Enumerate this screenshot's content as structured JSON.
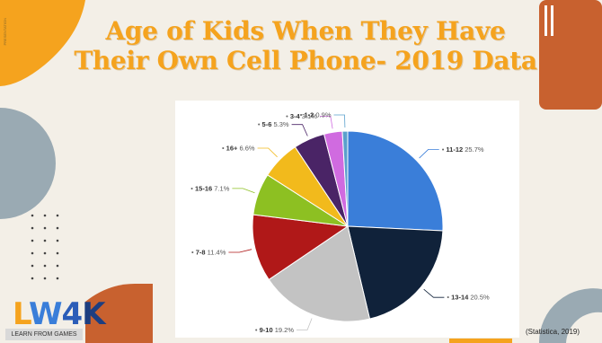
{
  "slide": {
    "title_line1": "Age of Kids When They Have",
    "title_line2": "Their Own  Cell Phone- 2019 Data",
    "credit": "(Statistica, 2019)",
    "logo_sub": "LEARN FROM GAMES",
    "vertical_label": "PRESENTATION"
  },
  "colors": {
    "title": "#f5a31e",
    "accent_orange": "#f5a31e",
    "accent_rust": "#c8612f",
    "accent_grey": "#9aaab3"
  },
  "chart_data": {
    "type": "pie",
    "title": "",
    "legend": "none",
    "slices": [
      {
        "label": "11-12",
        "value": 25.7,
        "display": "25.7%",
        "color": "#3a7ed9"
      },
      {
        "label": "13-14",
        "value": 20.5,
        "display": "20.5%",
        "color": "#10223a"
      },
      {
        "label": "9-10",
        "value": 19.2,
        "display": "19.2%",
        "color": "#c3c3c3"
      },
      {
        "label": "7-8",
        "value": 11.4,
        "display": "11.4%",
        "color": "#b01818"
      },
      {
        "label": "15-16",
        "value": 7.1,
        "display": "7.1%",
        "color": "#8dc022"
      },
      {
        "label": "16+",
        "value": 6.6,
        "display": "6.6%",
        "color": "#f2ba1c"
      },
      {
        "label": "5-6",
        "value": 5.3,
        "display": "5.3%",
        "color": "#4a2466"
      },
      {
        "label": "3-4",
        "value": 3.1,
        "display": "3.1%",
        "color": "#d06be0"
      },
      {
        "label": "1-2",
        "value": 0.9,
        "display": "0.9%",
        "color": "#5aa0cc"
      }
    ]
  }
}
